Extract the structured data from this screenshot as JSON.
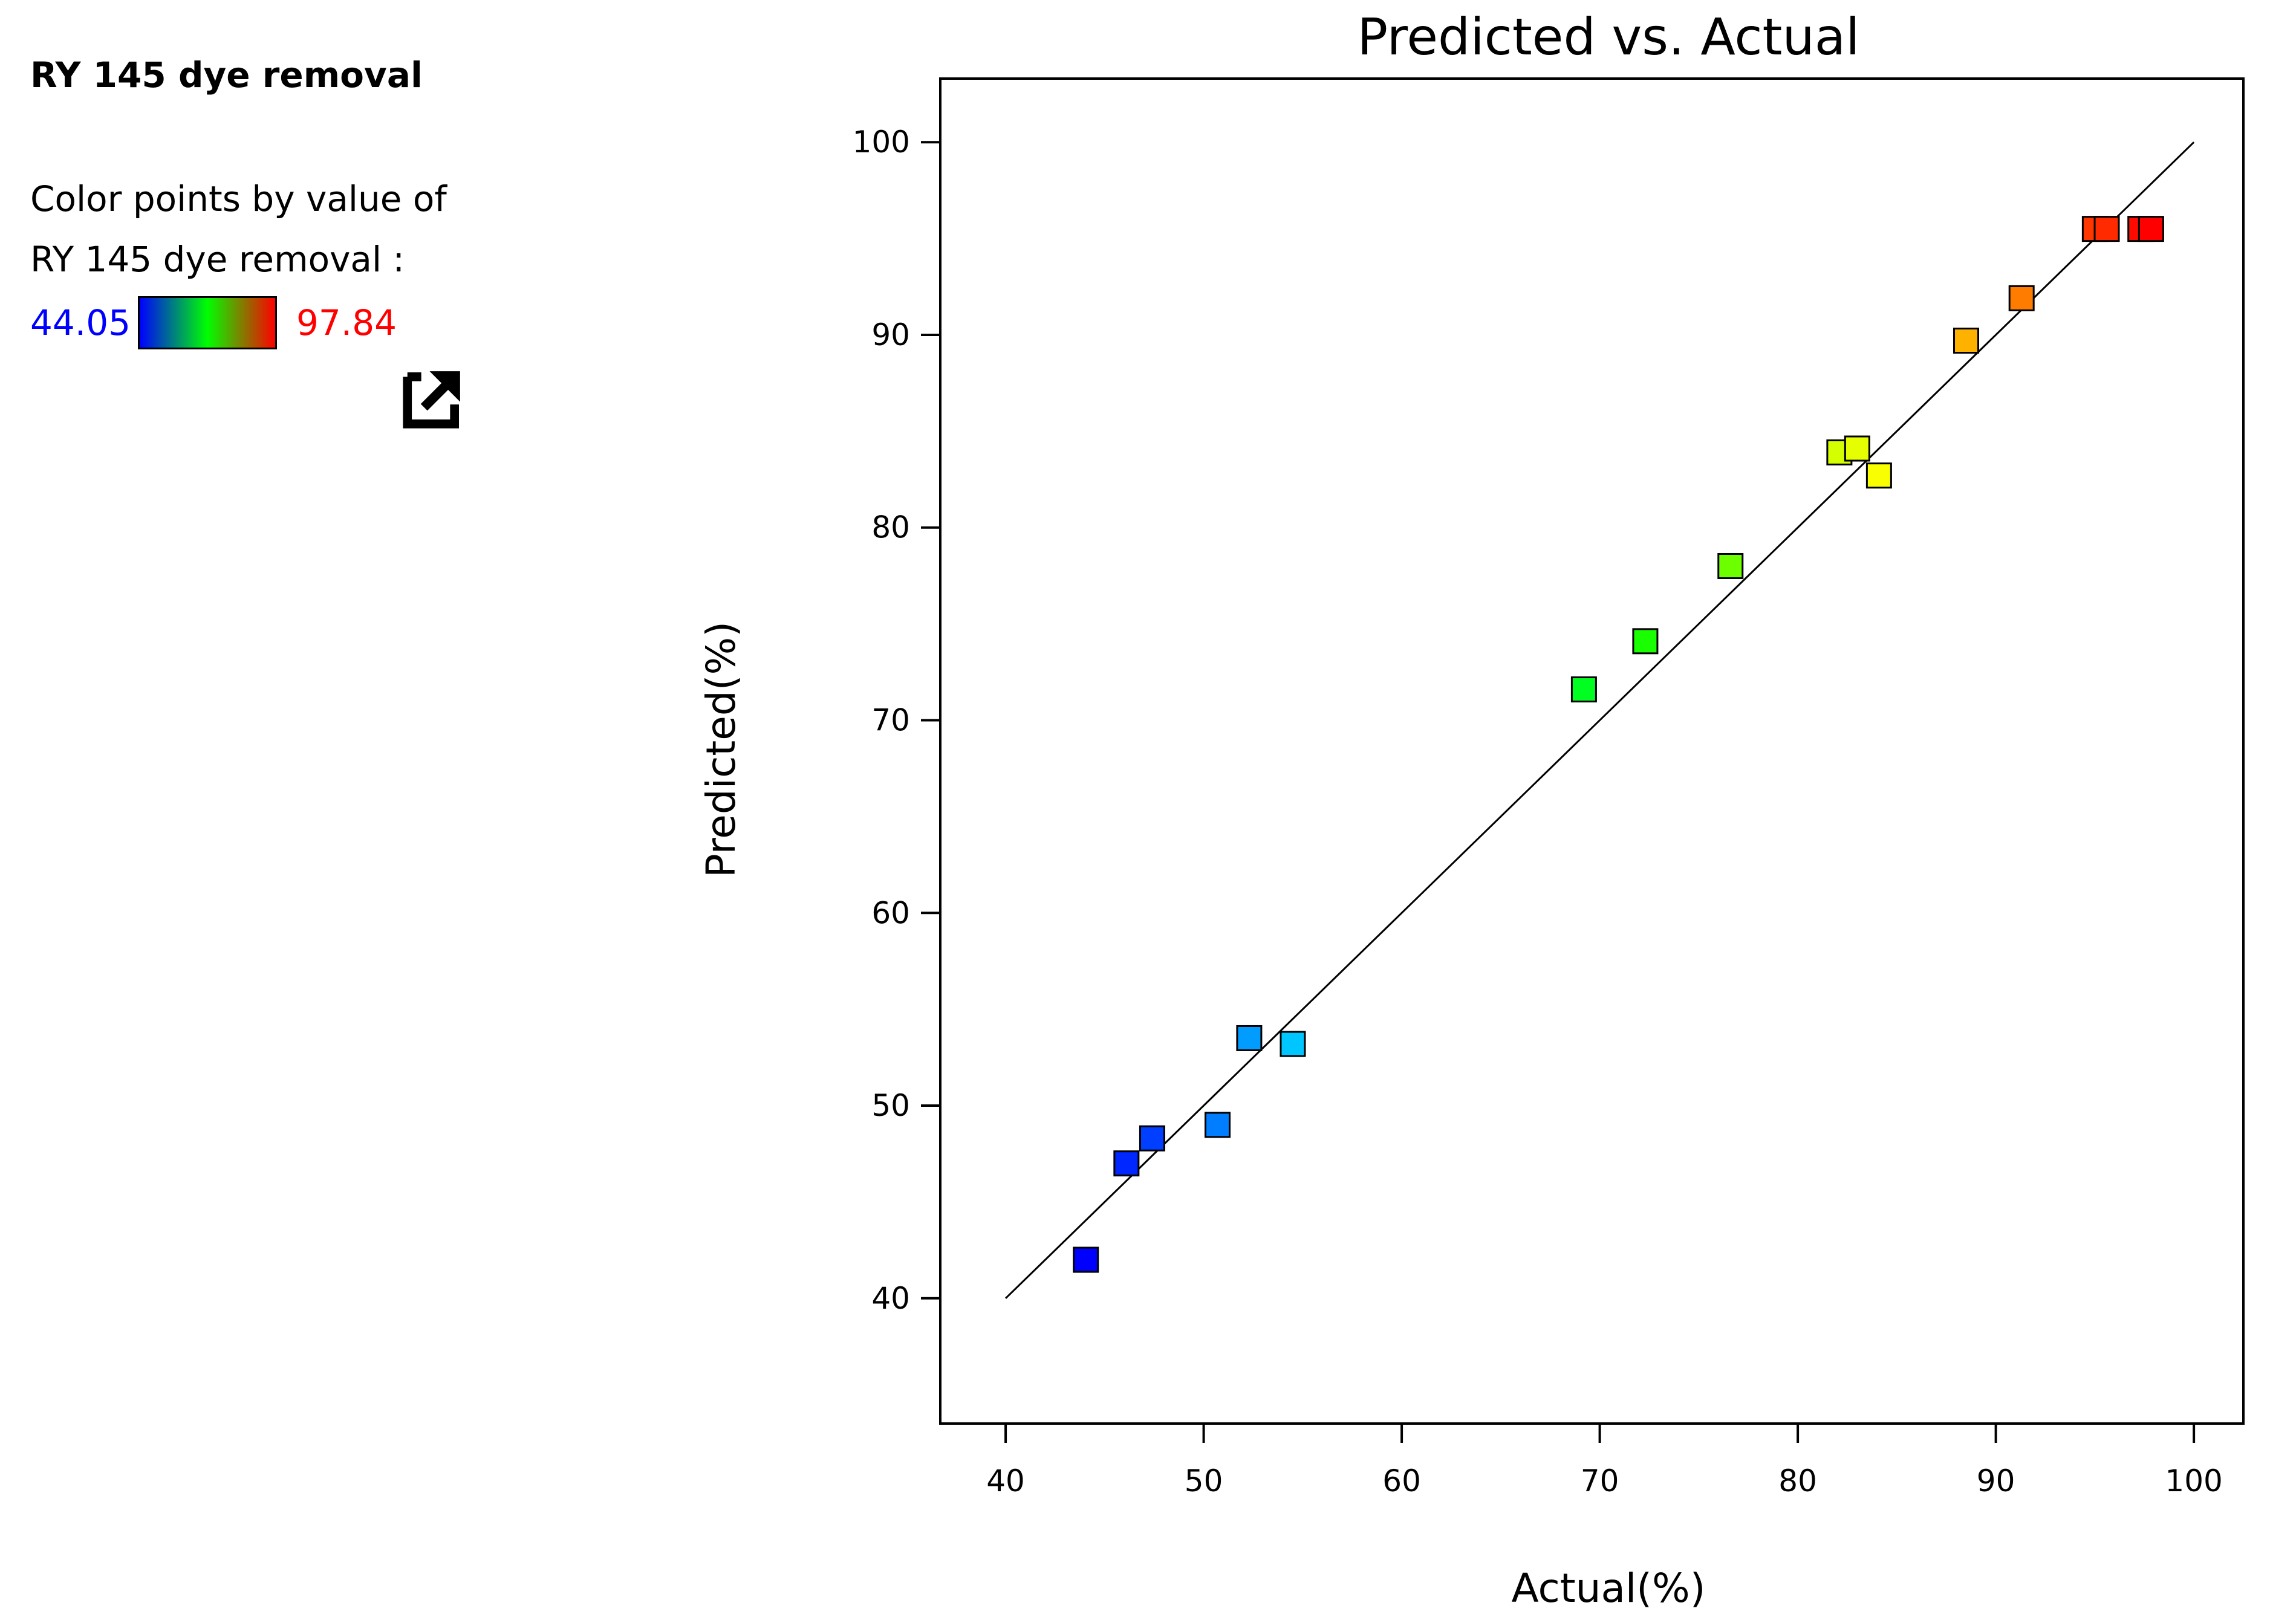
{
  "legend": {
    "title": "RY 145 dye removal",
    "line1": "Color points by value of",
    "line2": "RY 145 dye removal :",
    "min_label": "44.05",
    "max_label": "97.84",
    "min_color": "#0000ff",
    "max_color": "#ff0000",
    "gradient": [
      "#0000ff",
      "#00ff00",
      "#ff0000"
    ],
    "export_icon": "external-link-icon"
  },
  "chart_data": {
    "type": "scatter",
    "title": "Predicted vs. Actual",
    "xlabel": "Actual(%)",
    "ylabel": "Predicted(%)",
    "xlim": [
      36.7,
      102.5
    ],
    "ylim": [
      33.5,
      103.3
    ],
    "xticks": [
      40,
      50,
      60,
      70,
      80,
      90,
      100
    ],
    "yticks": [
      40,
      50,
      60,
      70,
      80,
      90,
      100
    ],
    "grid": false,
    "reference_line": {
      "x": [
        40,
        100
      ],
      "y": [
        40,
        100
      ]
    },
    "color_range": [
      44.05,
      97.84
    ],
    "points": [
      {
        "x": 44.05,
        "y": 42.0
      },
      {
        "x": 46.1,
        "y": 47.0
      },
      {
        "x": 47.4,
        "y": 48.3
      },
      {
        "x": 50.7,
        "y": 49.0
      },
      {
        "x": 52.3,
        "y": 53.5
      },
      {
        "x": 54.5,
        "y": 53.2
      },
      {
        "x": 69.2,
        "y": 71.6
      },
      {
        "x": 72.3,
        "y": 74.1
      },
      {
        "x": 76.6,
        "y": 78.0
      },
      {
        "x": 82.1,
        "y": 83.9
      },
      {
        "x": 83.0,
        "y": 84.1
      },
      {
        "x": 84.1,
        "y": 82.7
      },
      {
        "x": 88.5,
        "y": 89.7
      },
      {
        "x": 91.3,
        "y": 91.9
      },
      {
        "x": 95.0,
        "y": 95.5
      },
      {
        "x": 95.6,
        "y": 95.5
      },
      {
        "x": 97.3,
        "y": 95.5
      },
      {
        "x": 97.84,
        "y": 95.5
      }
    ]
  }
}
